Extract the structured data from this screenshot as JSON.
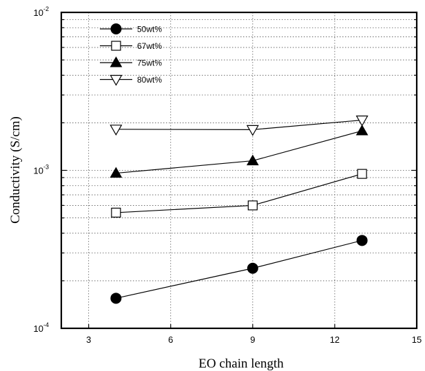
{
  "chart_data": {
    "type": "scatter",
    "xlabel": "EO chain length",
    "ylabel": "Conductivity (S/cm)",
    "xlim": [
      2,
      15
    ],
    "ylim": [
      0.0001,
      0.01
    ],
    "yscale": "log",
    "grid": true,
    "legend_position": "top-left",
    "x_ticks": [
      "3",
      "6",
      "9",
      "12",
      "15"
    ],
    "y_ticks": [
      {
        "base": "10",
        "exp": "-4"
      },
      {
        "base": "10",
        "exp": "-3"
      },
      {
        "base": "10",
        "exp": "-2"
      }
    ],
    "series": [
      {
        "name": "50wt%",
        "marker": "circle-filled",
        "x": [
          4,
          9,
          13
        ],
        "y": [
          0.000155,
          0.00024,
          0.00036
        ]
      },
      {
        "name": "67wt%",
        "marker": "square-open",
        "x": [
          4,
          9,
          13
        ],
        "y": [
          0.00054,
          0.0006,
          0.00095
        ]
      },
      {
        "name": "75wt%",
        "marker": "triangle-up-filled",
        "x": [
          4,
          9,
          13
        ],
        "y": [
          0.00096,
          0.00115,
          0.00178
        ]
      },
      {
        "name": "80wt%",
        "marker": "triangle-down-open",
        "x": [
          4,
          9,
          13
        ],
        "y": [
          0.00182,
          0.00181,
          0.00208
        ]
      }
    ]
  }
}
